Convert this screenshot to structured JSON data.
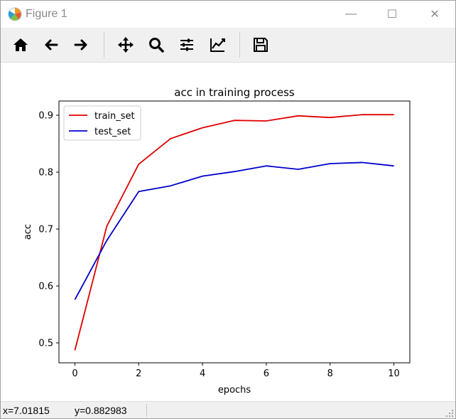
{
  "window": {
    "title": "Figure 1",
    "minimize": "—",
    "maximize": "☐",
    "close": "✕"
  },
  "toolbar": {
    "buttons": [
      {
        "name": "home-icon"
      },
      {
        "name": "back-arrow-icon"
      },
      {
        "name": "forward-arrow-icon"
      },
      {
        "name": "pan-icon"
      },
      {
        "name": "zoom-icon"
      },
      {
        "name": "configure-subplots-icon"
      },
      {
        "name": "edit-axis-icon"
      },
      {
        "name": "save-icon"
      }
    ]
  },
  "status": {
    "x": "x=7.01815",
    "y": "y=0.882983"
  },
  "chart_data": {
    "type": "line",
    "title": "acc in training process",
    "xlabel": "epochs",
    "ylabel": "acc",
    "xlim": [
      -0.5,
      10.5
    ],
    "ylim": [
      0.465,
      0.925
    ],
    "xticks": [
      0,
      2,
      4,
      6,
      8,
      10
    ],
    "yticks": [
      0.5,
      0.6,
      0.7,
      0.8,
      0.9
    ],
    "grid": false,
    "legend": "top-left",
    "x": [
      0,
      1,
      2,
      3,
      4,
      5,
      6,
      7,
      8,
      9,
      10
    ],
    "series": [
      {
        "name": "train_set",
        "color": "#e00000",
        "values": [
          0.487,
          0.705,
          0.814,
          0.859,
          0.878,
          0.891,
          0.89,
          0.899,
          0.896,
          0.901,
          0.901
        ]
      },
      {
        "name": "test_set",
        "color": "#0000cc",
        "values": [
          0.576,
          0.68,
          0.766,
          0.776,
          0.793,
          0.801,
          0.811,
          0.805,
          0.815,
          0.817,
          0.811
        ]
      }
    ]
  }
}
